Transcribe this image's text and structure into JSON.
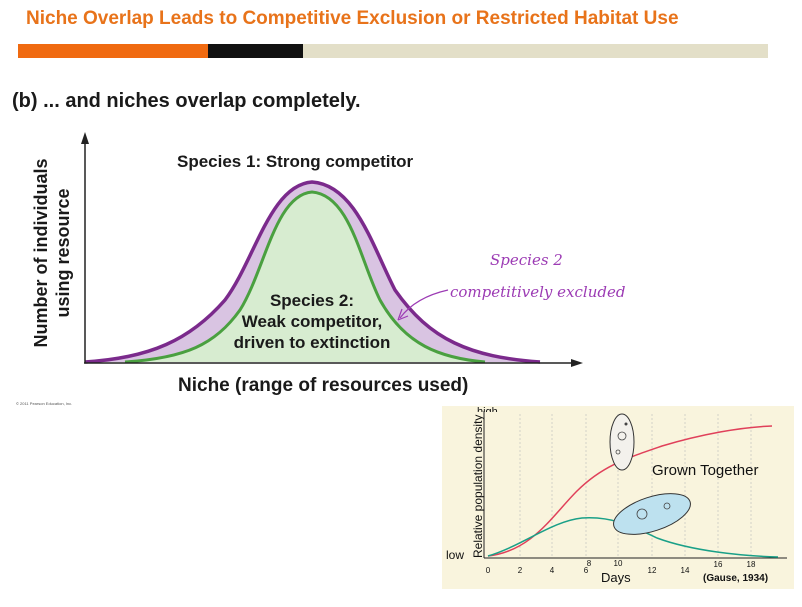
{
  "slide": {
    "title": "Niche Overlap Leads to Competitive Exclusion or Restricted Habitat Use",
    "colors": {
      "title": "#e8731a",
      "bar_orange": "#f06a10",
      "bar_black": "#111111",
      "bar_beige": "#e3dfc8"
    }
  },
  "diagram": {
    "subtitle": "(b) ... and niches overlap completely.",
    "y_axis_label_line1": "Number of individuals",
    "y_axis_label_line2": "using resource",
    "x_axis_label": "Niche (range of resources used)",
    "copyright": "© 2011 Pearson Education, Inc.",
    "species1_label": "Species 1: Strong competitor",
    "species2_line1": "Species 2:",
    "species2_line2": "Weak competitor,",
    "species2_line3": "driven to extinction",
    "colors": {
      "species1": "#7b2a8c",
      "species1_fill": "#d9c4e2",
      "species2": "#4aa040",
      "species2_fill": "#d7ecd0"
    }
  },
  "annotation": {
    "line1": "Species 2",
    "line2": "competitively excluded",
    "color": "#9c3bb4"
  },
  "inset": {
    "y_high": "high",
    "y_low": "low",
    "y_label": "Relative population density",
    "x_label": "Days",
    "x_ticks": [
      "0",
      "2",
      "4",
      "6",
      "8",
      "10",
      "12",
      "14",
      "16",
      "18"
    ],
    "curve_label": "Grown Together",
    "citation": "(Gause, 1934)",
    "colors": {
      "red_curve": "#e0405a",
      "teal_curve": "#1aa088",
      "background": "#f9f4dd"
    }
  }
}
